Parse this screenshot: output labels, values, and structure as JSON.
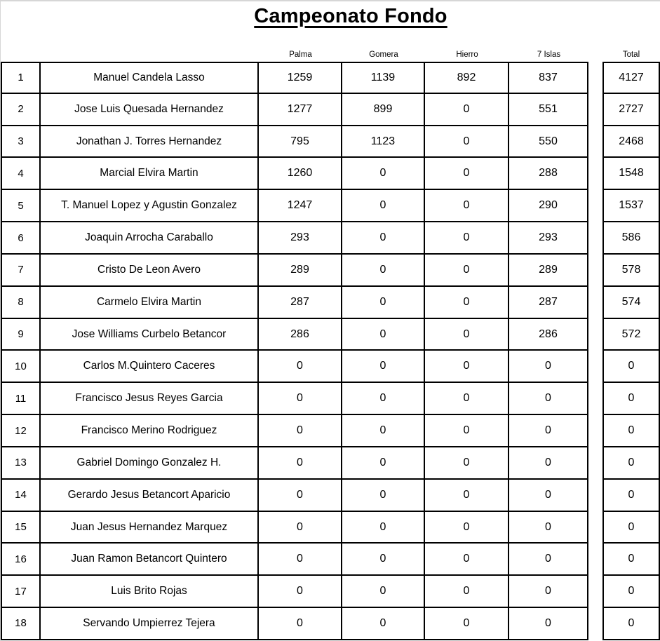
{
  "title": "Campeonato Fondo",
  "columns": [
    "Palma",
    "Gomera",
    "Hierro",
    "7 Islas"
  ],
  "total_label": "Total",
  "rows": [
    {
      "rank": "1",
      "name": "Manuel Candela Lasso",
      "scores": [
        "1259",
        "1139",
        "892",
        "837"
      ],
      "total": "4127"
    },
    {
      "rank": "2",
      "name": "Jose Luis Quesada Hernandez",
      "scores": [
        "1277",
        "899",
        "0",
        "551"
      ],
      "total": "2727"
    },
    {
      "rank": "3",
      "name": "Jonathan J. Torres Hernandez",
      "scores": [
        "795",
        "1123",
        "0",
        "550"
      ],
      "total": "2468"
    },
    {
      "rank": "4",
      "name": "Marcial Elvira Martin",
      "scores": [
        "1260",
        "0",
        "0",
        "288"
      ],
      "total": "1548"
    },
    {
      "rank": "5",
      "name": "T. Manuel Lopez y Agustin Gonzalez",
      "scores": [
        "1247",
        "0",
        "0",
        "290"
      ],
      "total": "1537"
    },
    {
      "rank": "6",
      "name": "Joaquin Arrocha Caraballo",
      "scores": [
        "293",
        "0",
        "0",
        "293"
      ],
      "total": "586"
    },
    {
      "rank": "7",
      "name": "Cristo De Leon Avero",
      "scores": [
        "289",
        "0",
        "0",
        "289"
      ],
      "total": "578"
    },
    {
      "rank": "8",
      "name": "Carmelo Elvira Martin",
      "scores": [
        "287",
        "0",
        "0",
        "287"
      ],
      "total": "574"
    },
    {
      "rank": "9",
      "name": "Jose Williams Curbelo Betancor",
      "scores": [
        "286",
        "0",
        "0",
        "286"
      ],
      "total": "572"
    },
    {
      "rank": "10",
      "name": "Carlos M.Quintero Caceres",
      "scores": [
        "0",
        "0",
        "0",
        "0"
      ],
      "total": "0"
    },
    {
      "rank": "11",
      "name": "Francisco Jesus Reyes Garcia",
      "scores": [
        "0",
        "0",
        "0",
        "0"
      ],
      "total": "0"
    },
    {
      "rank": "12",
      "name": "Francisco Merino Rodriguez",
      "scores": [
        "0",
        "0",
        "0",
        "0"
      ],
      "total": "0"
    },
    {
      "rank": "13",
      "name": "Gabriel Domingo Gonzalez H.",
      "scores": [
        "0",
        "0",
        "0",
        "0"
      ],
      "total": "0"
    },
    {
      "rank": "14",
      "name": "Gerardo Jesus Betancort Aparicio",
      "scores": [
        "0",
        "0",
        "0",
        "0"
      ],
      "total": "0"
    },
    {
      "rank": "15",
      "name": "Juan Jesus Hernandez Marquez",
      "scores": [
        "0",
        "0",
        "0",
        "0"
      ],
      "total": "0"
    },
    {
      "rank": "16",
      "name": "Juan Ramon Betancort Quintero",
      "scores": [
        "0",
        "0",
        "0",
        "0"
      ],
      "total": "0"
    },
    {
      "rank": "17",
      "name": "Luis Brito Rojas",
      "scores": [
        "0",
        "0",
        "0",
        "0"
      ],
      "total": "0"
    },
    {
      "rank": "18",
      "name": "Servando Umpierrez Tejera",
      "scores": [
        "0",
        "0",
        "0",
        "0"
      ],
      "total": "0"
    }
  ],
  "colors": {
    "text": "#000000",
    "border": "#000000",
    "background": "#ffffff",
    "page_edge": "#d6d6d6"
  }
}
